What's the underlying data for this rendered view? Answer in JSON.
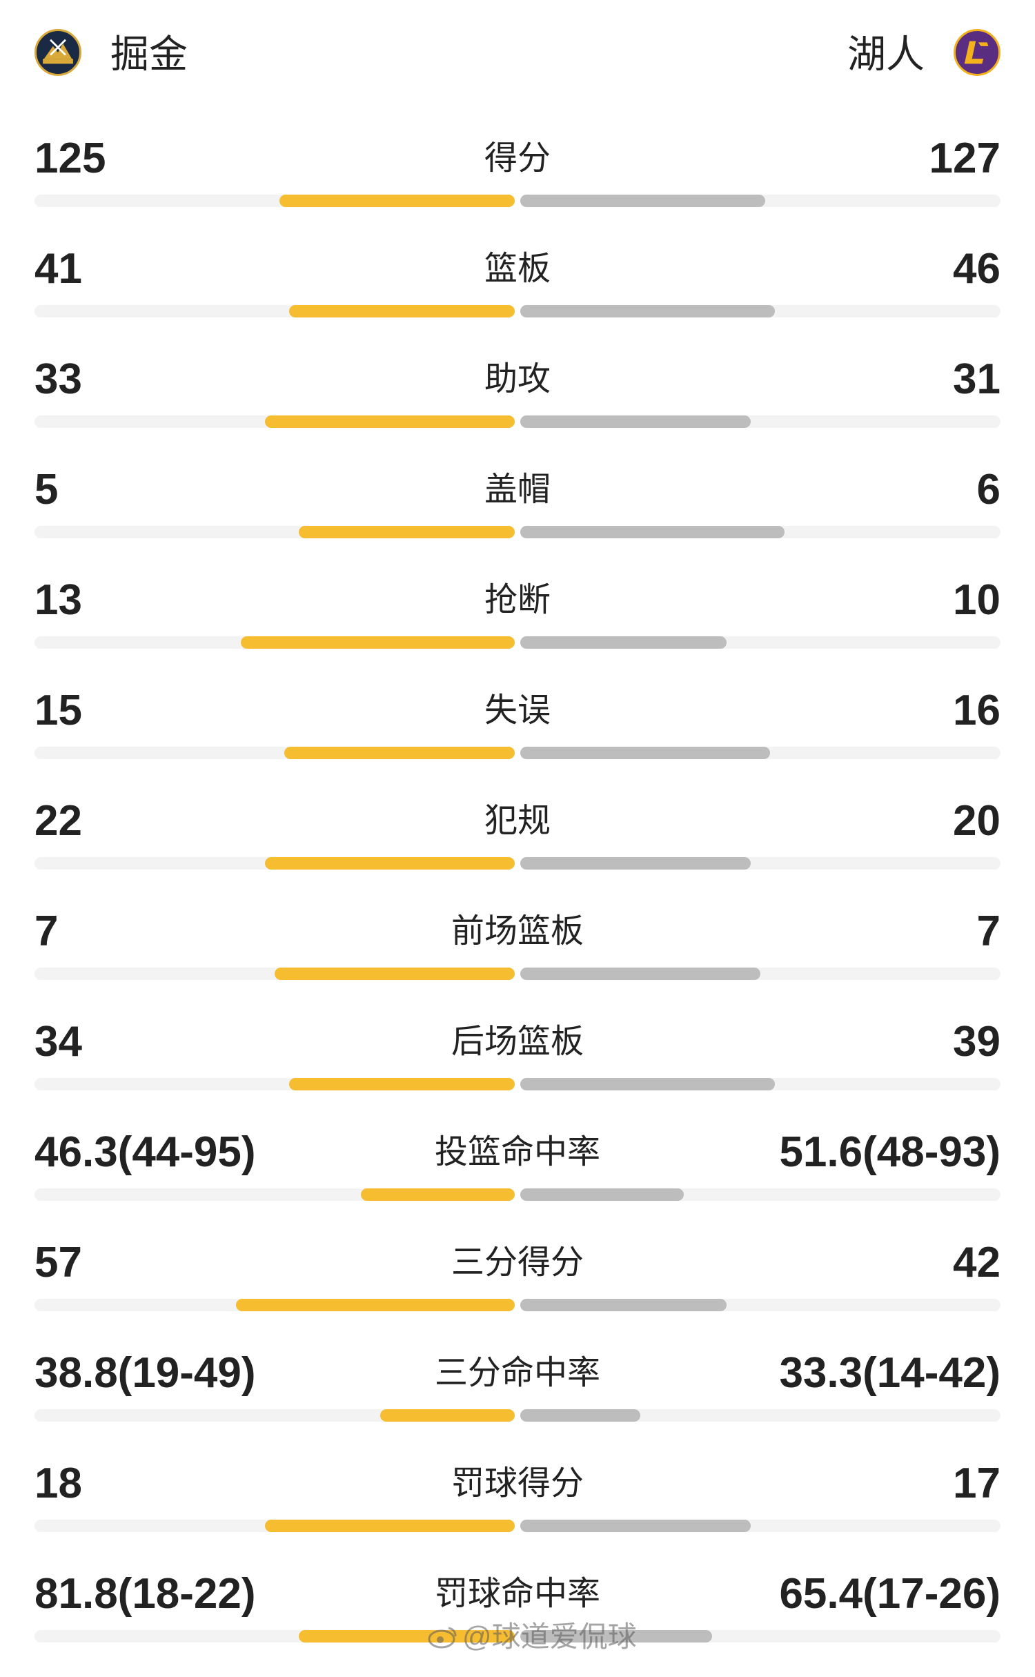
{
  "header": {
    "home_team": "掘金",
    "away_team": "湖人",
    "home_logo_icon": "nuggets-logo-icon",
    "away_logo_icon": "lakers-logo-icon"
  },
  "colors": {
    "home_bar": "#f7bd31",
    "away_bar": "#bdbdbd",
    "track": "#f3f3f3"
  },
  "stats": [
    {
      "label": "得分",
      "home": "125",
      "away": "127",
      "home_ratio": 0.49,
      "away_ratio": 0.51
    },
    {
      "label": "篮板",
      "home": "41",
      "away": "46",
      "home_ratio": 0.47,
      "away_ratio": 0.53
    },
    {
      "label": "助攻",
      "home": "33",
      "away": "31",
      "home_ratio": 0.52,
      "away_ratio": 0.48
    },
    {
      "label": "盖帽",
      "home": "5",
      "away": "6",
      "home_ratio": 0.45,
      "away_ratio": 0.55
    },
    {
      "label": "抢断",
      "home": "13",
      "away": "10",
      "home_ratio": 0.57,
      "away_ratio": 0.43
    },
    {
      "label": "失误",
      "home": "15",
      "away": "16",
      "home_ratio": 0.48,
      "away_ratio": 0.52
    },
    {
      "label": "犯规",
      "home": "22",
      "away": "20",
      "home_ratio": 0.52,
      "away_ratio": 0.48
    },
    {
      "label": "前场篮板",
      "home": "7",
      "away": "7",
      "home_ratio": 0.5,
      "away_ratio": 0.5
    },
    {
      "label": "后场篮板",
      "home": "34",
      "away": "39",
      "home_ratio": 0.47,
      "away_ratio": 0.53
    },
    {
      "label": "投篮命中率",
      "home": "46.3(44-95)",
      "away": "51.6(48-93)",
      "home_ratio": 0.32,
      "away_ratio": 0.34
    },
    {
      "label": "三分得分",
      "home": "57",
      "away": "42",
      "home_ratio": 0.58,
      "away_ratio": 0.43
    },
    {
      "label": "三分命中率",
      "home": "38.8(19-49)",
      "away": "33.3(14-42)",
      "home_ratio": 0.28,
      "away_ratio": 0.25
    },
    {
      "label": "罚球得分",
      "home": "18",
      "away": "17",
      "home_ratio": 0.52,
      "away_ratio": 0.48
    },
    {
      "label": "罚球命中率",
      "home": "81.8(18-22)",
      "away": "65.4(17-26)",
      "home_ratio": 0.45,
      "away_ratio": 0.4
    }
  ],
  "watermark": "@球道爱侃球"
}
